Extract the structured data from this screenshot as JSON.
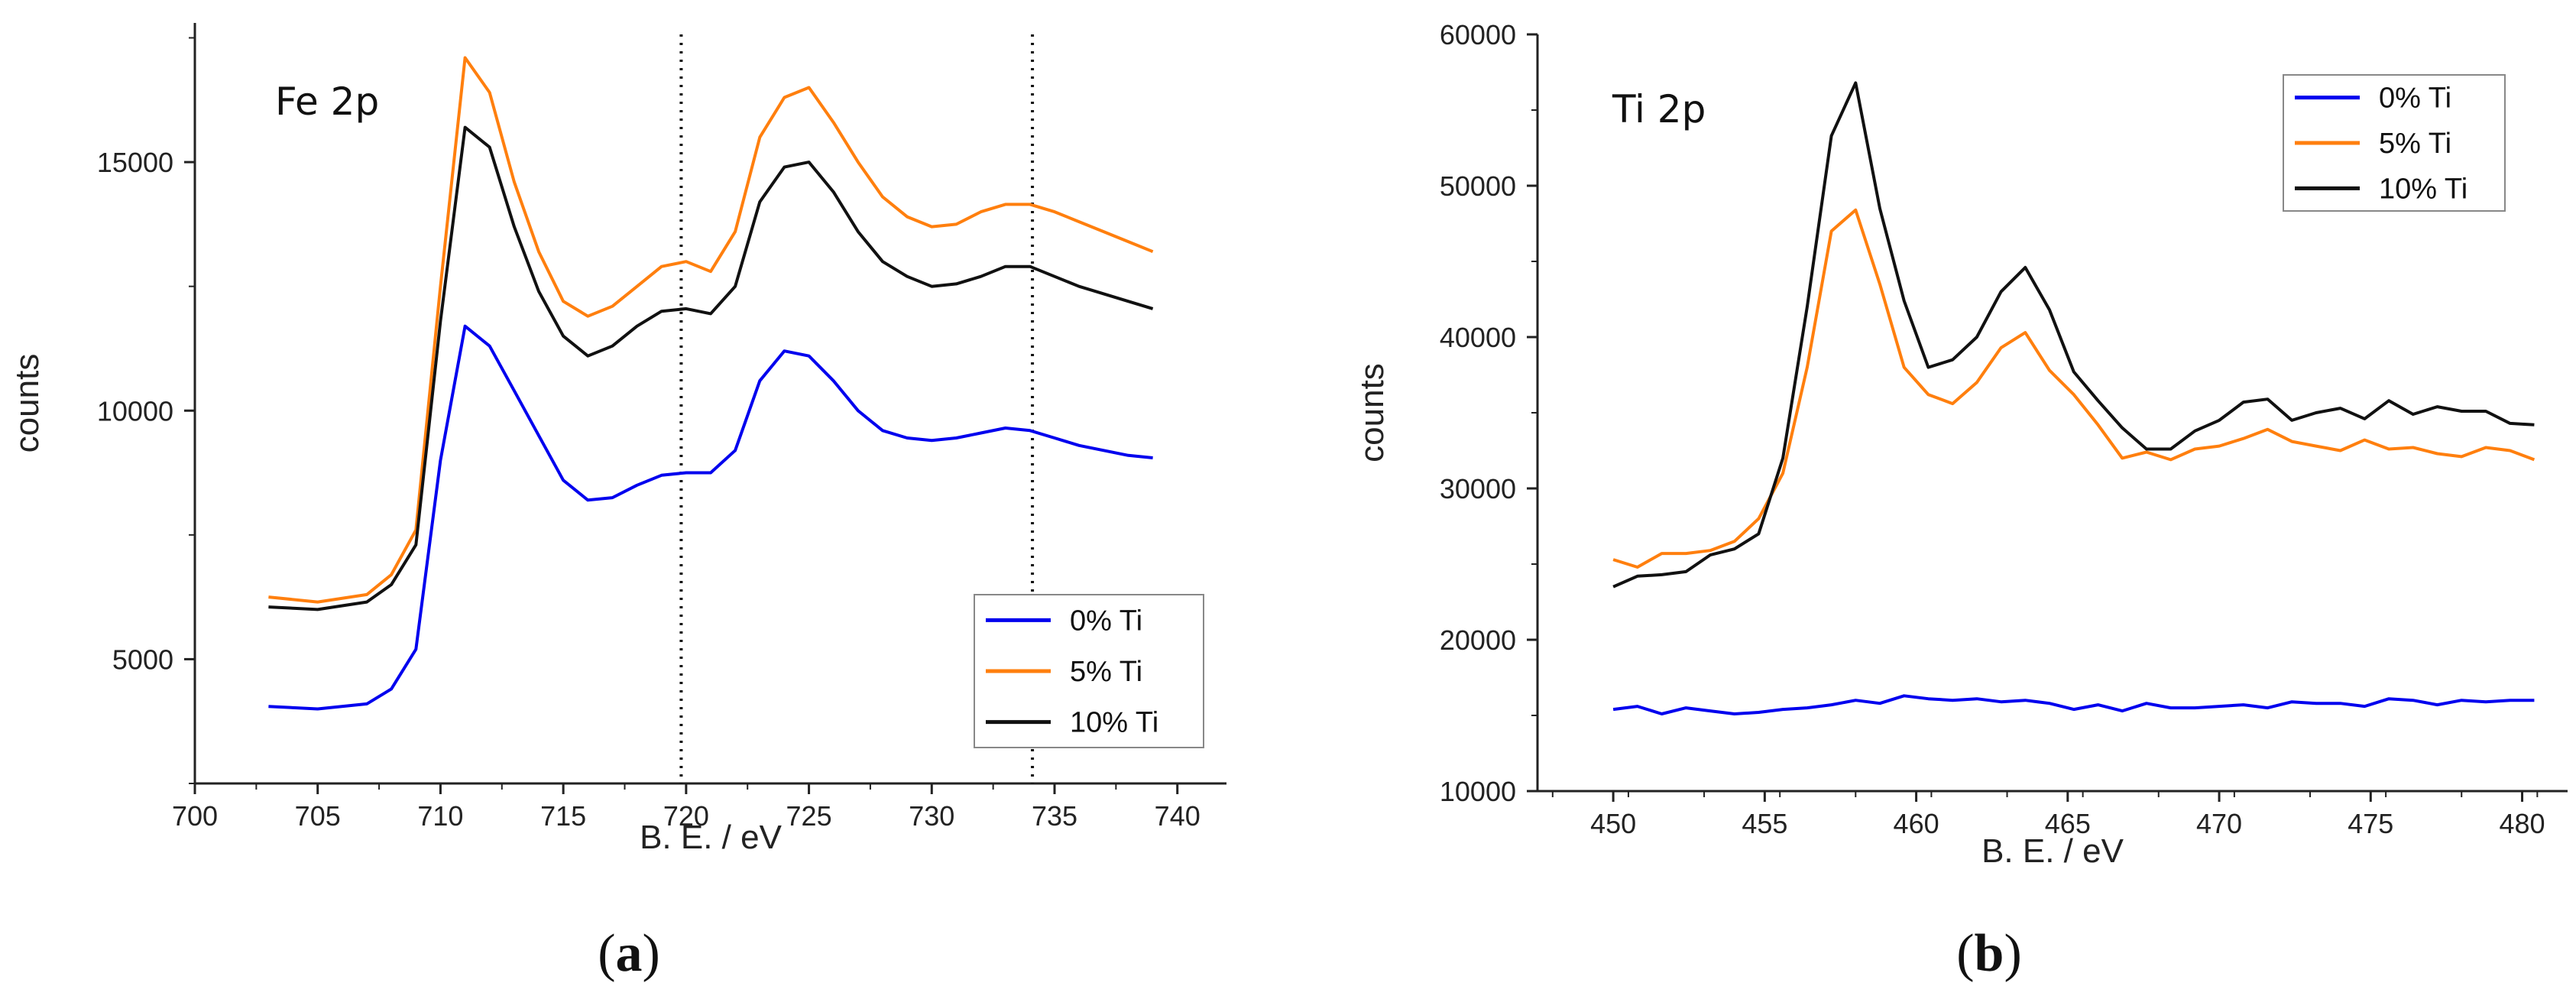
{
  "chart_data": [
    {
      "type": "line",
      "panel_label": "a",
      "title": "Fe 2p",
      "xlabel": "B. E. / eV",
      "ylabel": "counts",
      "xlim": [
        700,
        742
      ],
      "ylim": [
        2500,
        17800
      ],
      "xticks": [
        700,
        705,
        710,
        715,
        720,
        725,
        730,
        735,
        740
      ],
      "yticks": [
        5000,
        10000,
        15000
      ],
      "tick_labels_x": [
        "700",
        "705",
        "710",
        "715",
        "720",
        "725",
        "730",
        "735",
        "740"
      ],
      "tick_labels_y": [
        "5000",
        "10000",
        "15000"
      ],
      "reference_lines_x": [
        719.8,
        734.1
      ],
      "legend_position": "bottom-right",
      "x": [
        703,
        705,
        707,
        708,
        709,
        710,
        711,
        712,
        713,
        714,
        715,
        716,
        717,
        718,
        719,
        720,
        721,
        722,
        723,
        724,
        725,
        726,
        727,
        728,
        729,
        730,
        731,
        732,
        733,
        734,
        735,
        736,
        737,
        738,
        739
      ],
      "series": [
        {
          "name": "0% Ti",
          "color": "#0000ee",
          "values": [
            4050,
            4000,
            4100,
            4400,
            5200,
            9000,
            11700,
            11300,
            10400,
            9500,
            8600,
            8200,
            8250,
            8500,
            8700,
            8750,
            8750,
            9200,
            10600,
            11200,
            11100,
            10600,
            10000,
            9600,
            9450,
            9400,
            9450,
            9550,
            9650,
            9600,
            9450,
            9300,
            9200,
            9100,
            9050
          ]
        },
        {
          "name": "5% Ti",
          "color": "#ff7f0e",
          "values": [
            6250,
            6150,
            6300,
            6700,
            7600,
            12500,
            17100,
            16400,
            14600,
            13200,
            12200,
            11900,
            12100,
            12500,
            12900,
            13000,
            12800,
            13600,
            15500,
            16300,
            16500,
            15800,
            15000,
            14300,
            13900,
            13700,
            13750,
            14000,
            14150,
            14150,
            14000,
            13800,
            13600,
            13400,
            13200
          ]
        },
        {
          "name": "10% Ti",
          "color": "#111111",
          "values": [
            6050,
            6000,
            6150,
            6500,
            7300,
            11800,
            15700,
            15300,
            13700,
            12400,
            11500,
            11100,
            11300,
            11700,
            12000,
            12050,
            11950,
            12500,
            14200,
            14900,
            15000,
            14400,
            13600,
            13000,
            12700,
            12500,
            12550,
            12700,
            12900,
            12900,
            12700,
            12500,
            12350,
            12200,
            12050
          ]
        }
      ]
    },
    {
      "type": "line",
      "panel_label": "b",
      "title": "Ti 2p",
      "xlabel": "B. E. / eV",
      "ylabel": "counts",
      "xlim": [
        447.5,
        481.5
      ],
      "ylim": [
        10000,
        60000
      ],
      "xticks": [
        450,
        455,
        460,
        465,
        470,
        475,
        480
      ],
      "yticks": [
        10000,
        20000,
        30000,
        40000,
        50000,
        60000
      ],
      "tick_labels_x": [
        "450",
        "455",
        "460",
        "465",
        "470",
        "475",
        "480"
      ],
      "tick_labels_y": [
        "10000",
        "20000",
        "30000",
        "40000",
        "50000",
        "60000"
      ],
      "legend_position": "top-right",
      "x": [
        450,
        450.8,
        451.6,
        452.4,
        453.2,
        454,
        454.8,
        455.6,
        456.4,
        457.2,
        458,
        458.8,
        459.6,
        460.4,
        461.2,
        462,
        462.8,
        463.6,
        464.4,
        465.2,
        466,
        466.8,
        467.6,
        468.4,
        469.2,
        470,
        470.8,
        471.6,
        472.4,
        473.2,
        474,
        474.8,
        475.6,
        476.4,
        477.2,
        478,
        478.8,
        479.6,
        480.4
      ],
      "series": [
        {
          "name": "0% Ti",
          "color": "#0000ee",
          "values": [
            15400,
            15600,
            15100,
            15500,
            15300,
            15100,
            15200,
            15400,
            15500,
            15700,
            16000,
            15800,
            16300,
            16100,
            16000,
            16100,
            15900,
            16000,
            15800,
            15400,
            15700,
            15300,
            15800,
            15500,
            15500,
            15600,
            15700,
            15500,
            15900,
            15800,
            15800,
            15600,
            16100,
            16000,
            15700,
            16000,
            15900,
            16000,
            16000
          ]
        },
        {
          "name": "5% Ti",
          "color": "#ff7f0e",
          "values": [
            25300,
            24800,
            25700,
            25700,
            25900,
            26500,
            28000,
            31000,
            38000,
            47000,
            48400,
            43500,
            38000,
            36200,
            35600,
            37000,
            39300,
            40300,
            37800,
            36200,
            34200,
            32000,
            32400,
            31900,
            32600,
            32800,
            33300,
            33900,
            33100,
            32800,
            32500,
            33200,
            32600,
            32700,
            32300,
            32100,
            32700,
            32500,
            31900
          ]
        },
        {
          "name": "10% Ti",
          "color": "#111111",
          "values": [
            23500,
            24200,
            24300,
            24500,
            25600,
            26000,
            27000,
            32000,
            42000,
            53300,
            56800,
            48500,
            42400,
            38000,
            38500,
            40000,
            43000,
            44600,
            41800,
            37700,
            35800,
            34000,
            32600,
            32600,
            33800,
            34500,
            35700,
            35900,
            34500,
            35000,
            35300,
            34600,
            35800,
            34900,
            35400,
            35100,
            35100,
            34300,
            34200
          ]
        }
      ]
    }
  ],
  "captions": [
    "(a)",
    "(b)"
  ]
}
